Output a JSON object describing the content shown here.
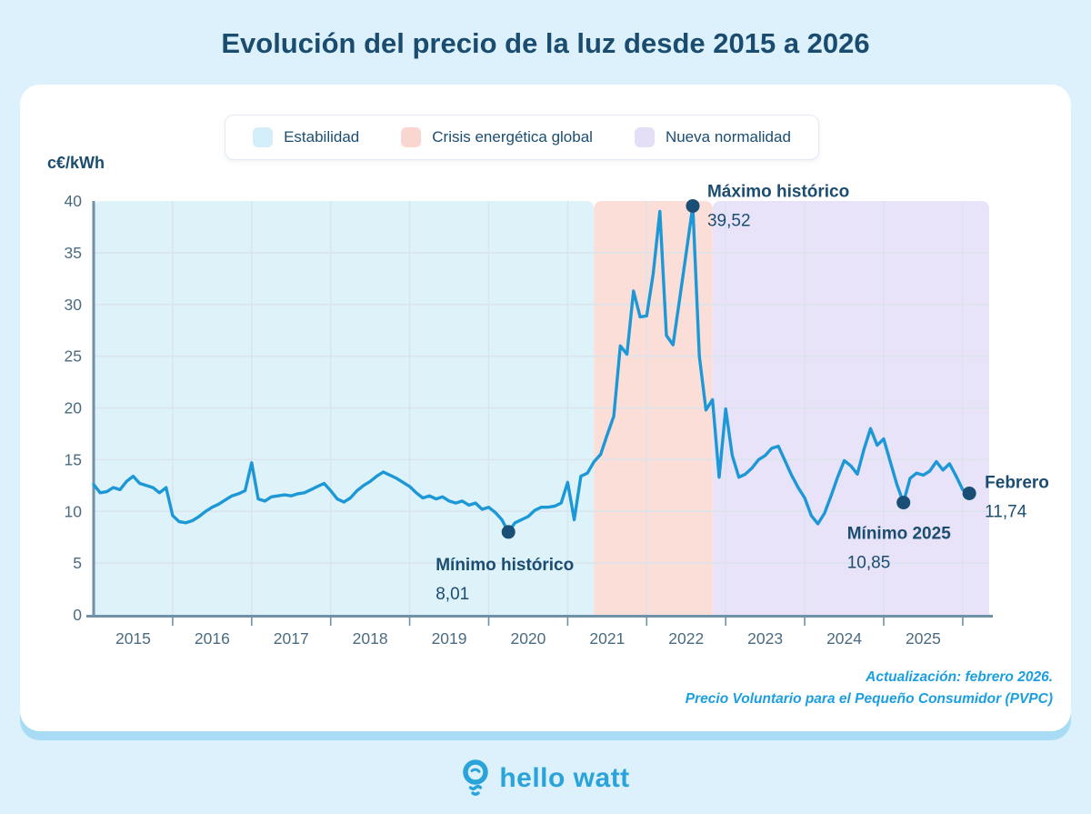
{
  "page": {
    "title": "Evolución del precio de la luz desde 2015 a 2026",
    "background": "#dcf1fb"
  },
  "legend": {
    "items": [
      {
        "label": "Estabilidad",
        "color": "#d3edf9"
      },
      {
        "label": "Crisis energética global",
        "color": "#fad6d0"
      },
      {
        "label": "Nueva normalidad",
        "color": "#e4def6"
      }
    ]
  },
  "chart_data": {
    "type": "line",
    "title": "Evolución del precio de la luz desde 2015 a 2026",
    "xlabel": "",
    "ylabel": "c€/kWh",
    "ylim": [
      0,
      40
    ],
    "yticks": [
      0,
      5,
      10,
      15,
      20,
      25,
      30,
      35,
      40
    ],
    "grid": true,
    "legend_position": "top",
    "x_start": "2015-01",
    "x_end": "2026-02",
    "year_labels": [
      "2015",
      "2016",
      "2017",
      "2018",
      "2019",
      "2020",
      "2021",
      "2022",
      "2023",
      "2024",
      "2025"
    ],
    "series": [
      {
        "name": "PVPC (c€/kWh)",
        "monthly_values": [
          12.6,
          11.8,
          11.9,
          12.3,
          12.1,
          12.9,
          13.4,
          12.7,
          12.5,
          12.3,
          11.8,
          12.3,
          9.6,
          9.0,
          8.9,
          9.1,
          9.5,
          10.0,
          10.4,
          10.7,
          11.1,
          11.5,
          11.7,
          12.0,
          14.7,
          11.2,
          11.0,
          11.4,
          11.5,
          11.6,
          11.5,
          11.7,
          11.8,
          12.1,
          12.4,
          12.7,
          12.0,
          11.2,
          10.9,
          11.3,
          12.0,
          12.5,
          12.9,
          13.4,
          13.8,
          13.5,
          13.2,
          12.8,
          12.4,
          11.8,
          11.3,
          11.5,
          11.2,
          11.4,
          11.0,
          10.8,
          11.0,
          10.6,
          10.8,
          10.2,
          10.4,
          9.9,
          9.2,
          8.01,
          8.9,
          9.2,
          9.5,
          10.1,
          10.4,
          10.4,
          10.5,
          10.8,
          12.8,
          9.2,
          13.4,
          13.7,
          14.8,
          15.5,
          17.4,
          19.2,
          26.0,
          25.2,
          31.3,
          28.8,
          28.9,
          33.0,
          39.0,
          27.0,
          26.1,
          30.5,
          35.0,
          39.52,
          25.0,
          19.8,
          20.8,
          13.3,
          19.9,
          15.4,
          13.3,
          13.6,
          14.2,
          15.0,
          15.4,
          16.1,
          16.3,
          14.9,
          13.5,
          12.3,
          11.3,
          9.6,
          8.8,
          9.8,
          11.5,
          13.3,
          14.9,
          14.4,
          13.6,
          16.0,
          18.0,
          16.4,
          17.0,
          14.8,
          12.6,
          10.85,
          13.2,
          13.7,
          13.5,
          13.9,
          14.8,
          14.0,
          14.6,
          13.4,
          12.1,
          11.74
        ]
      }
    ],
    "regions": [
      {
        "id": "estabilidad",
        "label": "Estabilidad",
        "color": "#def2fa",
        "from_index": 0,
        "to_index": 76
      },
      {
        "id": "crisis",
        "label": "Crisis energética global",
        "color": "#fbded8",
        "from_index": 76,
        "to_index": 94
      },
      {
        "id": "nueva-normalidad",
        "label": "Nueva normalidad",
        "color": "#e8e3f8",
        "from_index": 94,
        "to_index": null
      }
    ],
    "annotations": [
      {
        "id": "maximo-historico",
        "label": "Máximo histórico",
        "value_label": "39,52",
        "value": 39.52,
        "month_index": 91,
        "dx": 16,
        "dy1": -10,
        "dy2": 22,
        "anchor": "start"
      },
      {
        "id": "minimo-historico",
        "label": "Mínimo histórico",
        "value_label": "8,01",
        "value": 8.01,
        "month_index": 63,
        "dx": -80,
        "dy1": 42,
        "dy2": 74,
        "anchor": "start"
      },
      {
        "id": "minimo-2025",
        "label": "Mínimo 2025",
        "value_label": "10,85",
        "value": 10.85,
        "month_index": 123,
        "dx": -62,
        "dy1": 40,
        "dy2": 72,
        "anchor": "start"
      },
      {
        "id": "febrero-2026",
        "label": "Febrero",
        "value_label": "11,74",
        "value": 11.74,
        "month_index": 133,
        "dx": 17,
        "dy1": -6,
        "dy2": 26,
        "anchor": "start"
      }
    ],
    "colors": {
      "line": "#1d98d6",
      "dot": "#1a4e74",
      "grid": "#dbe3ec",
      "axis": "#6f92a8",
      "tick_text": "#4a6b80",
      "annotation": "#1b4d71"
    }
  },
  "source": {
    "line1": "Actualización: febrero 2026.",
    "line2": "Precio Voluntario para el Pequeño Consumidor (PVPC)",
    "color": "#1b9fe1"
  },
  "footer": {
    "logo_text": "hello watt",
    "logo_color": "#2aa3db"
  }
}
